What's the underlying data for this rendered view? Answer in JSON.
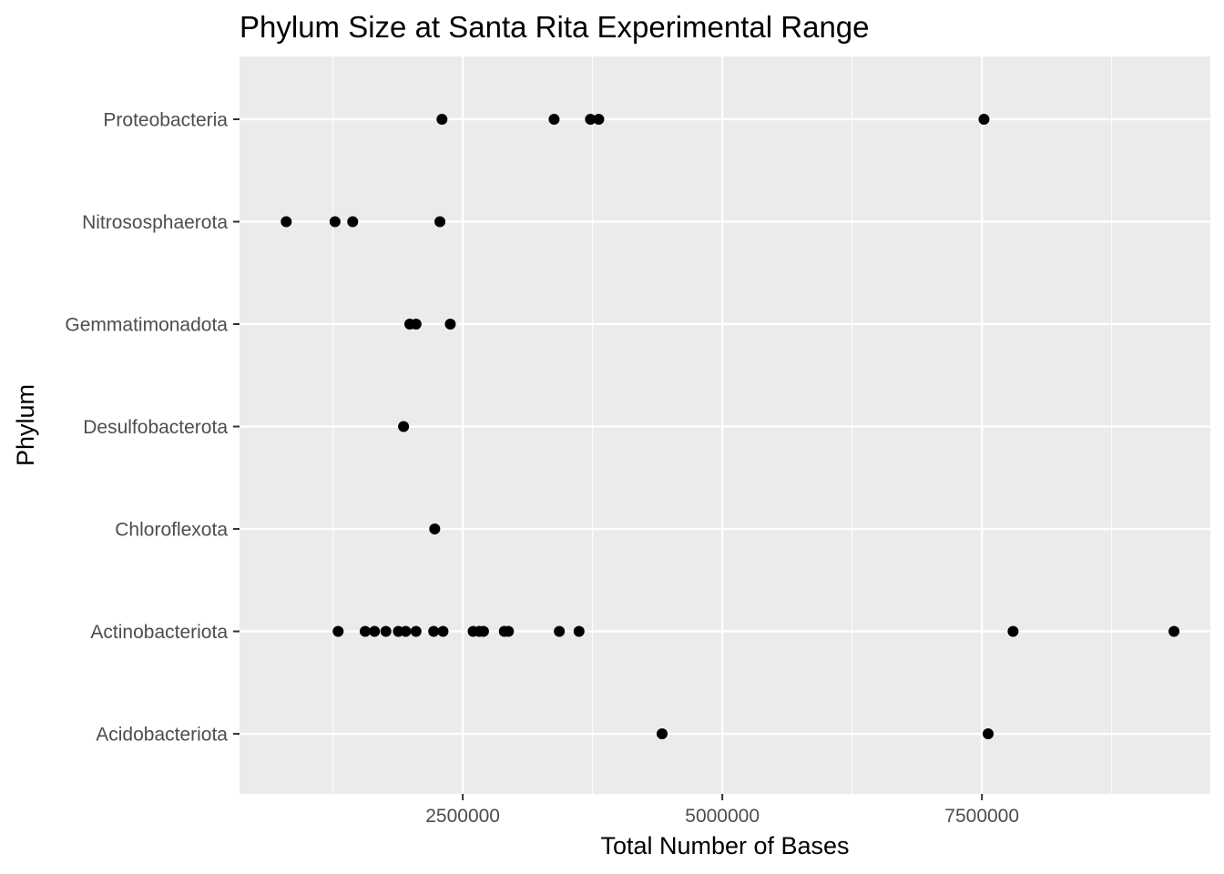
{
  "chart_data": {
    "type": "scatter",
    "title": "Phylum Size at Santa Rita Experimental Range",
    "xlabel": "Total Number of Bases",
    "ylabel": "Phylum",
    "xlim": [
      350000,
      9700000
    ],
    "x_ticks": [
      2500000,
      5000000,
      7500000
    ],
    "x_tick_labels": [
      "2500000",
      "5000000",
      "7500000"
    ],
    "categories": [
      "Acidobacteriota",
      "Actinobacteriota",
      "Chloroflexota",
      "Desulfobacterota",
      "Gemmatimonadota",
      "Nitrososphaerota",
      "Proteobacteria"
    ],
    "grid": true,
    "legend": "none",
    "colors": {
      "panel_background": "#ebebeb",
      "grid": "#ffffff",
      "point": "#000000",
      "tick_text": "#4d4d4d",
      "tick_mark": "#333333"
    },
    "points": [
      {
        "category": "Proteobacteria",
        "x": 2300000
      },
      {
        "category": "Proteobacteria",
        "x": 3380000
      },
      {
        "category": "Proteobacteria",
        "x": 3730000
      },
      {
        "category": "Proteobacteria",
        "x": 3810000
      },
      {
        "category": "Proteobacteria",
        "x": 7520000
      },
      {
        "category": "Nitrososphaerota",
        "x": 800000
      },
      {
        "category": "Nitrososphaerota",
        "x": 1270000
      },
      {
        "category": "Nitrososphaerota",
        "x": 1440000
      },
      {
        "category": "Nitrososphaerota",
        "x": 2280000
      },
      {
        "category": "Gemmatimonadota",
        "x": 1990000
      },
      {
        "category": "Gemmatimonadota",
        "x": 2050000
      },
      {
        "category": "Gemmatimonadota",
        "x": 2380000
      },
      {
        "category": "Desulfobacterota",
        "x": 1930000
      },
      {
        "category": "Chloroflexota",
        "x": 2230000
      },
      {
        "category": "Actinobacteriota",
        "x": 1300000
      },
      {
        "category": "Actinobacteriota",
        "x": 1560000
      },
      {
        "category": "Actinobacteriota",
        "x": 1650000
      },
      {
        "category": "Actinobacteriota",
        "x": 1760000
      },
      {
        "category": "Actinobacteriota",
        "x": 1880000
      },
      {
        "category": "Actinobacteriota",
        "x": 1950000
      },
      {
        "category": "Actinobacteriota",
        "x": 2050000
      },
      {
        "category": "Actinobacteriota",
        "x": 2220000
      },
      {
        "category": "Actinobacteriota",
        "x": 2310000
      },
      {
        "category": "Actinobacteriota",
        "x": 2600000
      },
      {
        "category": "Actinobacteriota",
        "x": 2660000
      },
      {
        "category": "Actinobacteriota",
        "x": 2700000
      },
      {
        "category": "Actinobacteriota",
        "x": 2900000
      },
      {
        "category": "Actinobacteriota",
        "x": 2940000
      },
      {
        "category": "Actinobacteriota",
        "x": 3430000
      },
      {
        "category": "Actinobacteriota",
        "x": 3620000
      },
      {
        "category": "Actinobacteriota",
        "x": 7800000
      },
      {
        "category": "Actinobacteriota",
        "x": 9350000
      },
      {
        "category": "Acidobacteriota",
        "x": 4420000
      },
      {
        "category": "Acidobacteriota",
        "x": 7560000
      }
    ]
  }
}
